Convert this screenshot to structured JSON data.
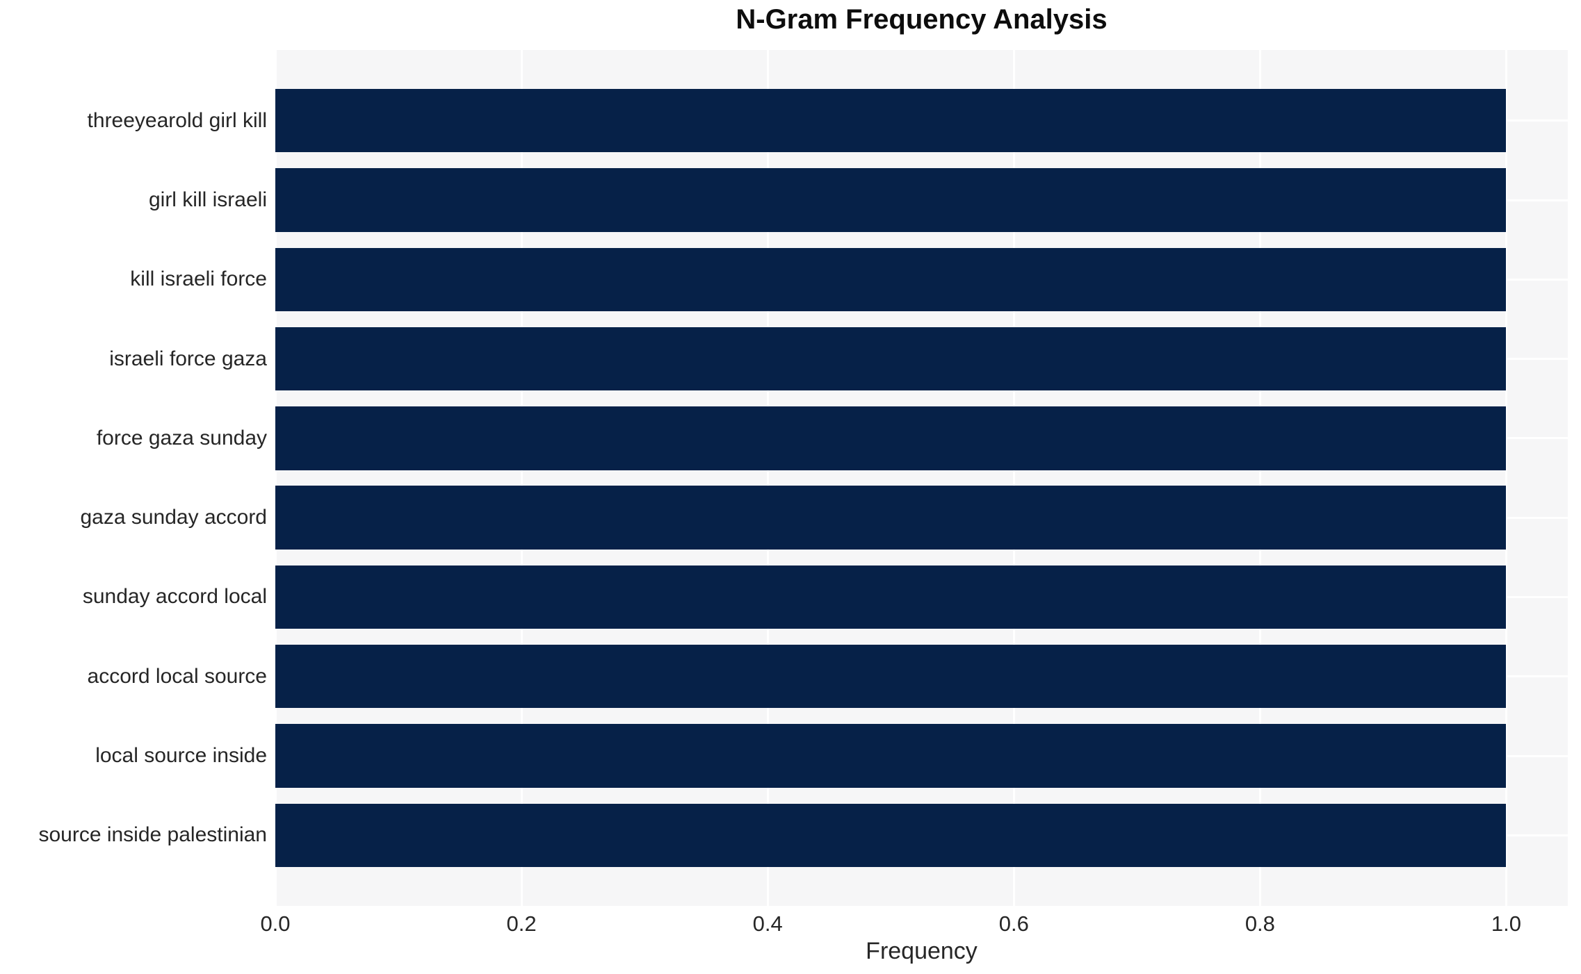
{
  "chart_data": {
    "type": "bar",
    "orientation": "horizontal",
    "title": "N-Gram Frequency Analysis",
    "xlabel": "Frequency",
    "ylabel": "",
    "categories": [
      "threeyearold girl kill",
      "girl kill israeli",
      "kill israeli force",
      "israeli force gaza",
      "force gaza sunday",
      "gaza sunday accord",
      "sunday accord local",
      "accord local source",
      "local source inside",
      "source inside palestinian"
    ],
    "values": [
      1.0,
      1.0,
      1.0,
      1.0,
      1.0,
      1.0,
      1.0,
      1.0,
      1.0,
      1.0
    ],
    "xticks": [
      0.0,
      0.2,
      0.4,
      0.6,
      0.8,
      1.0
    ],
    "xtick_labels": [
      "0.0",
      "0.2",
      "0.4",
      "0.6",
      "0.8",
      "1.0"
    ],
    "xlim": [
      0,
      1.05
    ],
    "grid": true,
    "legend": null,
    "bar_height_fraction": 0.8,
    "colors": {
      "bar": "#062148",
      "plot_background": "#f6f6f7",
      "grid": "#ffffff",
      "tick_text": "#262626",
      "title_text": "#0d0d0d",
      "figure_background": "#ffffff"
    }
  }
}
